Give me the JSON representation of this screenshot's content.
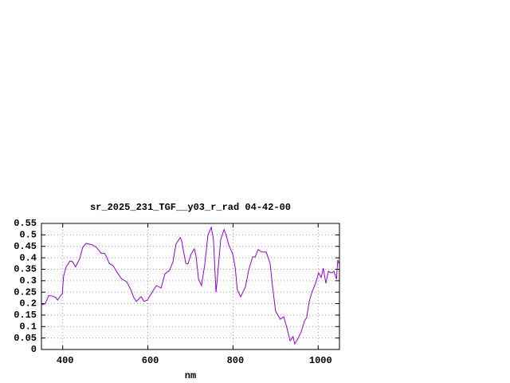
{
  "chart_data": {
    "type": "line",
    "title": "sr_2025_231_TGF__y03_r_rad 04-42-00",
    "xlabel": "nm",
    "xlim": [
      350,
      1050
    ],
    "xticks": [
      400,
      600,
      800,
      1000
    ],
    "ylim": [
      0,
      0.55
    ],
    "yticks": [
      0,
      0.05,
      0.1,
      0.15,
      0.2,
      0.25,
      0.3,
      0.35,
      0.4,
      0.45,
      0.5,
      0.55
    ],
    "grid": true,
    "series": [
      {
        "color": "#9400d3",
        "x": [
          350,
          359,
          367,
          376,
          384,
          388,
          393,
          399,
          402,
          408,
          417,
          423,
          430,
          440,
          447,
          455,
          470,
          479,
          490,
          498,
          503,
          509,
          518,
          530,
          539,
          550,
          560,
          567,
          573,
          584,
          591,
          599,
          610,
          620,
          631,
          640,
          651,
          659,
          666,
          676,
          679,
          689,
          694,
          702,
          709,
          713,
          719,
          726,
          734,
          741,
          749,
          754,
          760,
          763,
          771,
          779,
          784,
          790,
          799,
          805,
          810,
          818,
          829,
          837,
          846,
          852,
          859,
          868,
          878,
          887,
          893,
          900,
          911,
          919,
          926,
          934,
          941,
          945,
          953,
          960,
          968,
          973,
          979,
          986,
          994,
          1001,
          1007,
          1012,
          1018,
          1024,
          1031,
          1037,
          1043,
          1046,
          1050
        ],
        "values": [
          0.195,
          0.2,
          0.235,
          0.233,
          0.226,
          0.215,
          0.23,
          0.244,
          0.32,
          0.36,
          0.386,
          0.383,
          0.36,
          0.397,
          0.446,
          0.463,
          0.456,
          0.446,
          0.42,
          0.42,
          0.404,
          0.376,
          0.366,
          0.33,
          0.307,
          0.296,
          0.261,
          0.226,
          0.21,
          0.23,
          0.21,
          0.216,
          0.25,
          0.279,
          0.268,
          0.33,
          0.345,
          0.383,
          0.46,
          0.488,
          0.477,
          0.376,
          0.373,
          0.418,
          0.439,
          0.41,
          0.307,
          0.279,
          0.376,
          0.498,
          0.533,
          0.48,
          0.25,
          0.307,
          0.48,
          0.523,
          0.498,
          0.456,
          0.418,
          0.36,
          0.261,
          0.23,
          0.272,
          0.348,
          0.404,
          0.404,
          0.436,
          0.425,
          0.425,
          0.376,
          0.272,
          0.167,
          0.132,
          0.143,
          0.098,
          0.038,
          0.056,
          0.024,
          0.049,
          0.077,
          0.125,
          0.139,
          0.21,
          0.254,
          0.289,
          0.334,
          0.314,
          0.355,
          0.289,
          0.341,
          0.334,
          0.341,
          0.307,
          0.39,
          0.369
        ]
      }
    ]
  }
}
